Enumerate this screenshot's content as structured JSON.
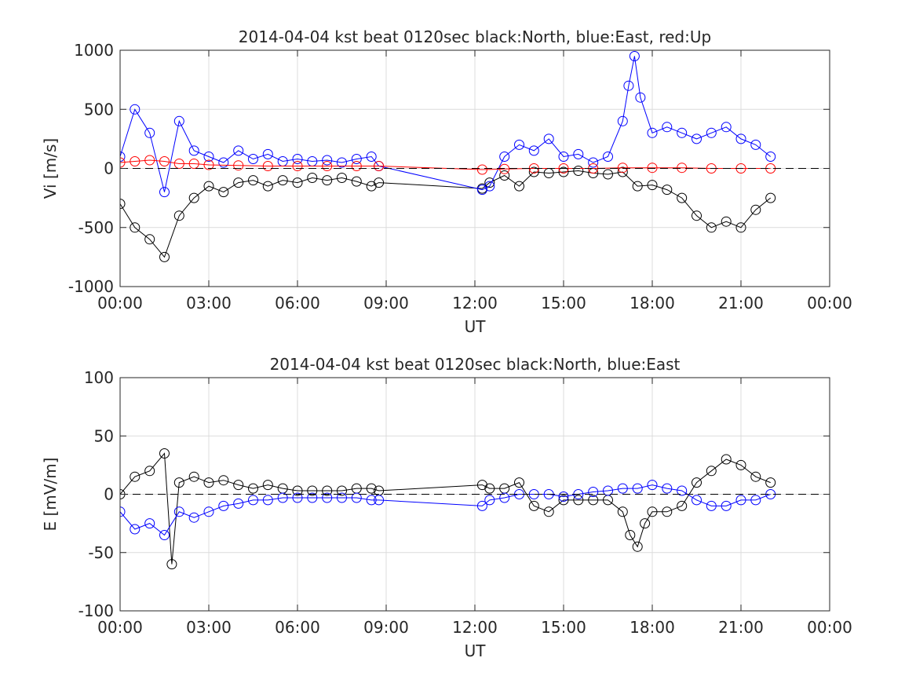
{
  "chart_data": [
    {
      "type": "scatter",
      "title": "2014-04-04 kst beat 0120sec black:North, blue:East, red:Up",
      "xlabel": "UT",
      "ylabel": "Vi [m/s]",
      "xlim": [
        0,
        24
      ],
      "ylim": [
        -1000,
        1000
      ],
      "xticks": [
        0,
        3,
        6,
        9,
        12,
        15,
        18,
        21,
        24
      ],
      "xtick_labels": [
        "00:00",
        "03:00",
        "06:00",
        "09:00",
        "12:00",
        "15:00",
        "18:00",
        "21:00",
        "00:00"
      ],
      "yticks": [
        1000,
        500,
        0,
        -500,
        -1000
      ],
      "ytick_labels": [
        "1000",
        "500",
        "0",
        "-500",
        "-1000"
      ],
      "grid": true,
      "zero_line": "dashed",
      "data_gap": [
        8.75,
        12.25
      ],
      "series": [
        {
          "color": "#000000",
          "marker": "circle",
          "x": [
            0.0,
            0.5,
            1.0,
            1.5,
            2.0,
            2.5,
            3.0,
            3.5,
            4.0,
            4.5,
            5.0,
            5.5,
            6.0,
            6.5,
            7.0,
            7.5,
            8.0,
            8.5,
            8.75,
            12.25,
            12.5,
            13.0,
            13.5,
            14.0,
            14.5,
            15.0,
            15.5,
            16.0,
            16.5,
            17.0,
            17.5,
            18.0,
            18.5,
            19.0,
            19.5,
            20.0,
            20.5,
            21.0,
            21.5,
            22.0
          ],
          "y": [
            -300,
            -500,
            -600,
            -750,
            -400,
            -250,
            -150,
            -200,
            -120,
            -100,
            -150,
            -100,
            -120,
            -80,
            -100,
            -80,
            -110,
            -150,
            -120,
            -170,
            -120,
            -60,
            -150,
            -30,
            -40,
            -30,
            -20,
            -40,
            -50,
            -30,
            -150,
            -140,
            -180,
            -250,
            -400,
            -500,
            -450,
            -500,
            -350,
            -250
          ]
        },
        {
          "color": "#0000ff",
          "marker": "circle",
          "x": [
            0.0,
            0.5,
            1.0,
            1.5,
            2.0,
            2.5,
            3.0,
            3.5,
            4.0,
            4.5,
            5.0,
            5.5,
            6.0,
            6.5,
            7.0,
            7.5,
            8.0,
            8.5,
            8.75,
            12.25,
            12.5,
            13.0,
            13.5,
            14.0,
            14.5,
            15.0,
            15.5,
            16.0,
            16.5,
            17.0,
            17.2,
            17.4,
            17.6,
            18.0,
            18.5,
            19.0,
            19.5,
            20.0,
            20.5,
            21.0,
            21.5,
            22.0
          ],
          "y": [
            100,
            500,
            300,
            -200,
            400,
            150,
            100,
            50,
            150,
            80,
            120,
            60,
            80,
            60,
            70,
            50,
            80,
            100,
            20,
            -180,
            -150,
            100,
            200,
            150,
            250,
            100,
            120,
            50,
            100,
            400,
            700,
            950,
            600,
            300,
            350,
            300,
            250,
            300,
            350,
            250,
            200,
            100
          ]
        },
        {
          "color": "#ff0000",
          "marker": "circle",
          "x": [
            0.0,
            0.5,
            1.0,
            1.5,
            2.0,
            2.5,
            3.0,
            4.0,
            5.0,
            6.0,
            7.0,
            8.0,
            8.75,
            12.25,
            13.0,
            14.0,
            15.0,
            16.0,
            17.0,
            18.0,
            19.0,
            20.0,
            21.0,
            22.0
          ],
          "y": [
            50,
            60,
            70,
            60,
            40,
            40,
            30,
            25,
            20,
            20,
            20,
            20,
            20,
            -10,
            -5,
            0,
            0,
            0,
            5,
            5,
            5,
            0,
            0,
            0
          ]
        }
      ]
    },
    {
      "type": "scatter",
      "title": "2014-04-04 kst beat 0120sec black:North, blue:East",
      "xlabel": "UT",
      "ylabel": "E [mV/m]",
      "xlim": [
        0,
        24
      ],
      "ylim": [
        -100,
        100
      ],
      "xticks": [
        0,
        3,
        6,
        9,
        12,
        15,
        18,
        21,
        24
      ],
      "xtick_labels": [
        "00:00",
        "03:00",
        "06:00",
        "09:00",
        "12:00",
        "15:00",
        "18:00",
        "21:00",
        "00:00"
      ],
      "yticks": [
        100,
        50,
        0,
        -50,
        -100
      ],
      "ytick_labels": [
        "100",
        "50",
        "0",
        "-50",
        "-100"
      ],
      "grid": true,
      "zero_line": "dashed",
      "data_gap": [
        8.75,
        12.25
      ],
      "series": [
        {
          "color": "#000000",
          "marker": "circle",
          "x": [
            0.0,
            0.5,
            1.0,
            1.5,
            1.75,
            2.0,
            2.5,
            3.0,
            3.5,
            4.0,
            4.5,
            5.0,
            5.5,
            6.0,
            6.5,
            7.0,
            7.5,
            8.0,
            8.5,
            8.75,
            12.25,
            12.5,
            13.0,
            13.5,
            14.0,
            14.5,
            15.0,
            15.5,
            16.0,
            16.5,
            17.0,
            17.25,
            17.5,
            17.75,
            18.0,
            18.5,
            19.0,
            19.5,
            20.0,
            20.5,
            21.0,
            21.5,
            22.0
          ],
          "y": [
            0,
            15,
            20,
            35,
            -60,
            10,
            15,
            10,
            12,
            8,
            5,
            8,
            5,
            3,
            3,
            3,
            3,
            5,
            5,
            3,
            8,
            5,
            5,
            10,
            -10,
            -15,
            -5,
            -5,
            -5,
            -5,
            -15,
            -35,
            -45,
            -25,
            -15,
            -15,
            -10,
            10,
            20,
            30,
            25,
            15,
            10
          ]
        },
        {
          "color": "#0000ff",
          "marker": "circle",
          "x": [
            0.0,
            0.5,
            1.0,
            1.5,
            2.0,
            2.5,
            3.0,
            3.5,
            4.0,
            4.5,
            5.0,
            5.5,
            6.0,
            6.5,
            7.0,
            7.5,
            8.0,
            8.5,
            8.75,
            12.25,
            12.5,
            13.0,
            13.5,
            14.0,
            14.5,
            15.0,
            15.5,
            16.0,
            16.5,
            17.0,
            17.5,
            18.0,
            18.5,
            19.0,
            19.5,
            20.0,
            20.5,
            21.0,
            21.5,
            22.0
          ],
          "y": [
            -15,
            -30,
            -25,
            -35,
            -15,
            -20,
            -15,
            -10,
            -8,
            -5,
            -5,
            -3,
            -3,
            -3,
            -3,
            -3,
            -3,
            -5,
            -5,
            -10,
            -5,
            -3,
            0,
            0,
            0,
            -2,
            0,
            2,
            3,
            5,
            5,
            8,
            5,
            3,
            -5,
            -10,
            -10,
            -5,
            -5,
            0
          ]
        }
      ]
    }
  ]
}
